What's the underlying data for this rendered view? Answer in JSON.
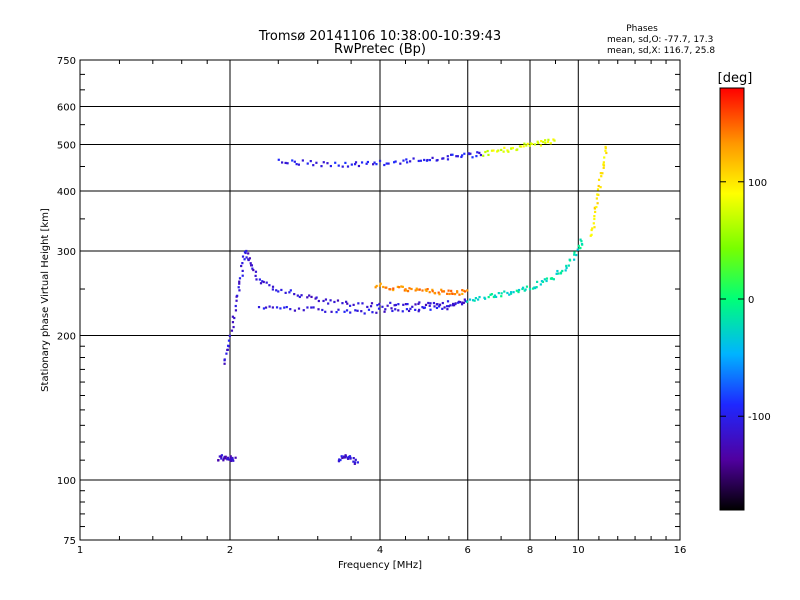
{
  "chart_data": {
    "type": "scatter",
    "title": "Tromsø 20141106 10:38:00-10:39:43",
    "subtitle": "RwPretec (Bp)",
    "phases_box": {
      "title": "Phases",
      "line_o": "mean, sd,O: -77.7, 17.3",
      "line_x": "mean, sd,X: 116.7, 25.8"
    },
    "xlabel": "Frequency [MHz]",
    "ylabel": "Stationary phase Virtual Height [km]",
    "x_scale": "log",
    "y_scale": "log",
    "xlim": [
      1,
      16
    ],
    "ylim": [
      75,
      750
    ],
    "x_ticks": [
      {
        "value": 1,
        "label": "1"
      },
      {
        "value": 2,
        "label": "2"
      },
      {
        "value": 4,
        "label": "4"
      },
      {
        "value": 6,
        "label": "6"
      },
      {
        "value": 8,
        "label": "8"
      },
      {
        "value": 10,
        "label": "10"
      },
      {
        "value": 16,
        "label": "16"
      }
    ],
    "y_ticks": [
      {
        "value": 75,
        "label": "75"
      },
      {
        "value": 100,
        "label": "100"
      },
      {
        "value": 200,
        "label": "200"
      },
      {
        "value": 300,
        "label": "300"
      },
      {
        "value": 400,
        "label": "400"
      },
      {
        "value": 500,
        "label": "500"
      },
      {
        "value": 600,
        "label": "600"
      },
      {
        "value": 750,
        "label": "750"
      }
    ],
    "grid": true,
    "colorbar": {
      "title": "[deg]",
      "range": [
        -180,
        180
      ],
      "ticks": [
        {
          "value": 100,
          "label": "100"
        },
        {
          "value": 0,
          "label": "0"
        },
        {
          "value": -100,
          "label": "-100"
        }
      ]
    },
    "traces": [
      {
        "phase": -110,
        "x": [
          1.95,
          2.0,
          2.05,
          2.1,
          2.15,
          2.2,
          2.3,
          2.5,
          2.8,
          3.1,
          3.5,
          4.0,
          4.5,
          5.0,
          5.5,
          6.0
        ],
        "y": [
          175,
          195,
          230,
          265,
          300,
          280,
          258,
          250,
          242,
          236,
          232,
          232,
          232,
          232,
          233,
          236
        ]
      },
      {
        "phase": -105,
        "x": [
          2.3,
          2.6,
          3.0,
          3.5,
          4.0,
          4.5,
          5.0,
          5.5,
          6.0
        ],
        "y": [
          228,
          228,
          226,
          225,
          225,
          226,
          228,
          230,
          234
        ]
      },
      {
        "phase": 140,
        "x": [
          3.9,
          4.2,
          4.5,
          4.8,
          5.1,
          5.4,
          5.7,
          6.0
        ],
        "y": [
          255,
          252,
          250,
          248,
          247,
          246,
          246,
          246
        ]
      },
      {
        "phase": -20,
        "x": [
          6.0,
          6.5,
          7.0,
          7.5,
          8.0,
          8.5,
          9.0,
          9.5,
          10.0,
          10.2
        ],
        "y": [
          236,
          240,
          244,
          248,
          252,
          258,
          266,
          280,
          300,
          320
        ]
      },
      {
        "phase": -100,
        "x": [
          2.5,
          2.8,
          3.2,
          3.6,
          4.0,
          4.5,
          5.0,
          5.5,
          6.0,
          6.4
        ],
        "y": [
          462,
          458,
          455,
          455,
          458,
          462,
          466,
          470,
          474,
          478
        ]
      },
      {
        "phase": 80,
        "x": [
          6.4,
          7.0,
          7.5,
          8.0,
          8.5,
          9.0
        ],
        "y": [
          478,
          485,
          492,
          500,
          505,
          510
        ]
      },
      {
        "phase": 100,
        "x": [
          10.6,
          10.8,
          11.0,
          11.2,
          11.4
        ],
        "y": [
          320,
          360,
          400,
          450,
          500
        ]
      },
      {
        "phase": -120,
        "x": [
          1.9,
          1.95,
          2.0,
          2.05
        ],
        "y": [
          110,
          112,
          111,
          110
        ]
      },
      {
        "phase": -110,
        "x": [
          3.3,
          3.4,
          3.5,
          3.6
        ],
        "y": [
          110,
          112,
          111,
          108
        ]
      }
    ]
  }
}
